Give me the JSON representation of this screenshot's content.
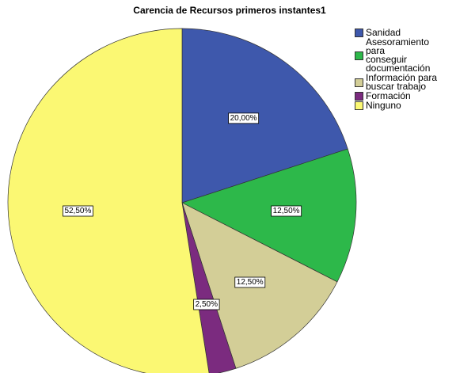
{
  "chart_data": {
    "type": "pie",
    "title": "Carencia de Recursos primeros instantes1",
    "categories": [
      "Sanidad",
      "Asesoramiento para conseguir documentación",
      "Información para buscar trabajo",
      "Formación",
      "Ninguno"
    ],
    "values": [
      20,
      12.5,
      12.5,
      2.5,
      52.5
    ],
    "value_labels": [
      "20,00%",
      "12,50%",
      "12,50%",
      "2,50%",
      "52,50%"
    ],
    "colors": [
      "#3e58ac",
      "#2db84a",
      "#d3ce97",
      "#7b2b7f",
      "#fbf873"
    ],
    "legend": "right"
  }
}
